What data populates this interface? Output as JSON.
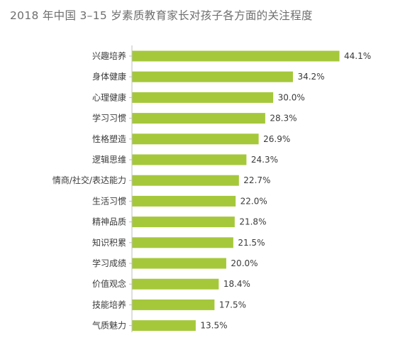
{
  "chart_data": {
    "type": "bar",
    "orientation": "horizontal",
    "title": "2018 年中国 3–15 岁素质教育家长对孩子各方面的关注程度",
    "categories": [
      "兴趣培养",
      "身体健康",
      "心理健康",
      "学习习惯",
      "性格塑造",
      "逻辑思维",
      "情商/社交/表达能力",
      "生活习惯",
      "精神品质",
      "知识积累",
      "学习成绩",
      "价值观念",
      "技能培养",
      "气质魅力"
    ],
    "values": [
      44.1,
      34.2,
      30.0,
      28.3,
      26.9,
      24.3,
      22.7,
      22.0,
      21.8,
      21.5,
      20.0,
      18.4,
      17.5,
      13.5
    ],
    "value_labels": [
      "44.1%",
      "34.2%",
      "30.0%",
      "28.3%",
      "26.9%",
      "24.3%",
      "22.7%",
      "22.0%",
      "21.8%",
      "21.5%",
      "20.0%",
      "18.4%",
      "17.5%",
      "13.5%"
    ],
    "unit": "%",
    "xlim": [
      0,
      44.1
    ],
    "grid": false,
    "legend": "none",
    "bar_color": "#a5c83b",
    "axis_color": "#bfbfbf",
    "xlabel": "",
    "ylabel": ""
  }
}
